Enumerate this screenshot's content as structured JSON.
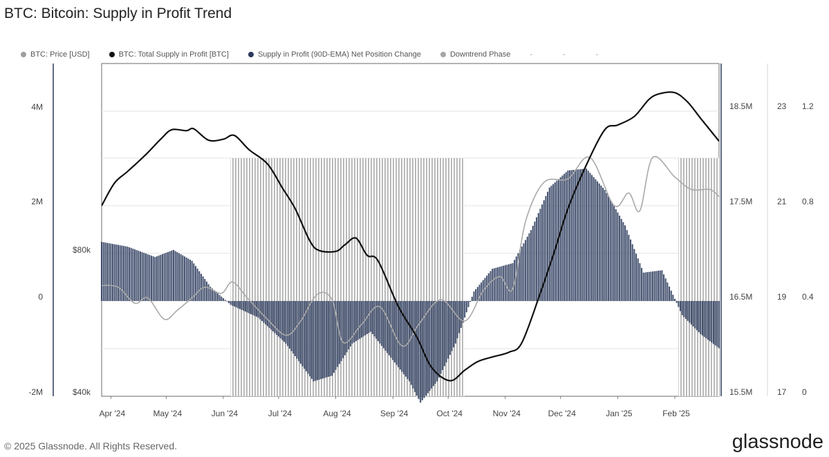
{
  "header": {
    "title": "BTC: Bitcoin: Supply in Profit Trend"
  },
  "legend": [
    {
      "label": "BTC: Price [USD]",
      "color": "#9e9e9e"
    },
    {
      "label": "BTC: Total Supply in Profit [BTC]",
      "color": "#111111"
    },
    {
      "label": "Supply in Profit (90D-EMA) Net Position Change",
      "color": "#2b3a5c"
    },
    {
      "label": "Downtrend Phase",
      "color": "#a6a6a6"
    }
  ],
  "footer": {
    "copyright": "© 2025 Glassnode. All Rights Reserved.",
    "brand": "glassnode"
  },
  "chart_data": {
    "type": "line",
    "x_labels": [
      "Apr '24",
      "May '24",
      "Jun '24",
      "Jul '24",
      "Aug '24",
      "Sep '24",
      "Oct '24",
      "Nov '24",
      "Dec '24",
      "Jan '25",
      "Feb '25"
    ],
    "x_range": [
      "2024-03-27",
      "2025-02-25"
    ],
    "axes": {
      "net_change": {
        "ticks": [
          "4M",
          "2M",
          "0",
          "-2M"
        ],
        "range": [
          -2000000,
          4000000
        ]
      },
      "price": {
        "ticks": [
          "$80k",
          "$40k"
        ],
        "range": [
          40000,
          80000
        ]
      },
      "supply": {
        "ticks": [
          "18.5M",
          "17.5M",
          "16.5M",
          "15.5M"
        ],
        "range": [
          15500000,
          18500000
        ]
      },
      "aux1": {
        "ticks": [
          "23",
          "21",
          "19",
          "17"
        ]
      },
      "aux2": {
        "ticks": [
          "1.2",
          "0.8",
          "0.4",
          "0"
        ]
      }
    },
    "grid": true,
    "downtrend_phases": [
      {
        "start": "2024-06-05",
        "end": "2024-10-10"
      },
      {
        "start": "2025-02-03",
        "end": "2025-02-25"
      }
    ],
    "series": [
      {
        "name": "BTC: Total Supply in Profit [BTC]",
        "axis": "supply",
        "color": "#111111",
        "points": [
          [
            "2024-03-27",
            17460000
          ],
          [
            "2024-04-03",
            17700000
          ],
          [
            "2024-04-10",
            17820000
          ],
          [
            "2024-04-20",
            18000000
          ],
          [
            "2024-04-28",
            18160000
          ],
          [
            "2024-05-04",
            18260000
          ],
          [
            "2024-05-12",
            18250000
          ],
          [
            "2024-05-16",
            18270000
          ],
          [
            "2024-05-24",
            18150000
          ],
          [
            "2024-06-01",
            18160000
          ],
          [
            "2024-06-07",
            18200000
          ],
          [
            "2024-06-15",
            18050000
          ],
          [
            "2024-06-25",
            17900000
          ],
          [
            "2024-07-03",
            17650000
          ],
          [
            "2024-07-10",
            17430000
          ],
          [
            "2024-07-18",
            17090000
          ],
          [
            "2024-07-23",
            16990000
          ],
          [
            "2024-08-01",
            16980000
          ],
          [
            "2024-08-06",
            17050000
          ],
          [
            "2024-08-12",
            17120000
          ],
          [
            "2024-08-18",
            16940000
          ],
          [
            "2024-08-24",
            16880000
          ],
          [
            "2024-09-04",
            16400000
          ],
          [
            "2024-09-14",
            16080000
          ],
          [
            "2024-09-22",
            15760000
          ],
          [
            "2024-10-02",
            15620000
          ],
          [
            "2024-10-10",
            15730000
          ],
          [
            "2024-10-17",
            15820000
          ],
          [
            "2024-10-25",
            15870000
          ],
          [
            "2024-11-03",
            15920000
          ],
          [
            "2024-11-10",
            16020000
          ],
          [
            "2024-11-20",
            16540000
          ],
          [
            "2024-11-28",
            17000000
          ],
          [
            "2024-12-05",
            17430000
          ],
          [
            "2024-12-15",
            17890000
          ],
          [
            "2024-12-25",
            18260000
          ],
          [
            "2025-01-01",
            18310000
          ],
          [
            "2025-01-10",
            18400000
          ],
          [
            "2025-01-18",
            18580000
          ],
          [
            "2025-01-24",
            18640000
          ],
          [
            "2025-02-01",
            18650000
          ],
          [
            "2025-02-08",
            18550000
          ],
          [
            "2025-02-15",
            18380000
          ],
          [
            "2025-02-25",
            18140000
          ]
        ]
      },
      {
        "name": "BTC: Price [USD]",
        "axis": "price",
        "color": "#a9a9a9",
        "points": [
          [
            "2024-03-27",
            70000
          ],
          [
            "2024-04-05",
            69500
          ],
          [
            "2024-04-14",
            65000
          ],
          [
            "2024-04-21",
            66500
          ],
          [
            "2024-04-30",
            60500
          ],
          [
            "2024-05-07",
            63000
          ],
          [
            "2024-05-15",
            66500
          ],
          [
            "2024-05-22",
            69500
          ],
          [
            "2024-05-31",
            67800
          ],
          [
            "2024-06-06",
            71000
          ],
          [
            "2024-06-14",
            66500
          ],
          [
            "2024-06-24",
            61000
          ],
          [
            "2024-07-05",
            56000
          ],
          [
            "2024-07-13",
            60000
          ],
          [
            "2024-07-22",
            67500
          ],
          [
            "2024-07-30",
            66000
          ],
          [
            "2024-08-05",
            54000
          ],
          [
            "2024-08-15",
            59000
          ],
          [
            "2024-08-25",
            64000
          ],
          [
            "2024-09-06",
            53000
          ],
          [
            "2024-09-15",
            59000
          ],
          [
            "2024-09-27",
            66000
          ],
          [
            "2024-10-10",
            60000
          ],
          [
            "2024-10-20",
            68500
          ],
          [
            "2024-10-29",
            72500
          ],
          [
            "2024-11-05",
            69000
          ],
          [
            "2024-11-12",
            88000
          ],
          [
            "2024-11-22",
            99000
          ],
          [
            "2024-12-05",
            100000
          ],
          [
            "2024-12-17",
            106000
          ],
          [
            "2024-12-30",
            92500
          ],
          [
            "2025-01-07",
            96000
          ],
          [
            "2025-01-13",
            91000
          ],
          [
            "2025-01-20",
            106000
          ],
          [
            "2025-02-01",
            100500
          ],
          [
            "2025-02-10",
            97000
          ],
          [
            "2025-02-20",
            97000
          ],
          [
            "2025-02-25",
            95000
          ]
        ]
      },
      {
        "name": "Supply in Profit (90D-EMA) Net Position Change",
        "axis": "net_change",
        "color": "#2b3a5c",
        "points": [
          [
            "2024-03-27",
            1250000
          ],
          [
            "2024-04-10",
            1150000
          ],
          [
            "2024-04-25",
            930000
          ],
          [
            "2024-05-05",
            1080000
          ],
          [
            "2024-05-15",
            850000
          ],
          [
            "2024-05-25",
            300000
          ],
          [
            "2024-06-05",
            -80000
          ],
          [
            "2024-06-20",
            -350000
          ],
          [
            "2024-07-05",
            -900000
          ],
          [
            "2024-07-20",
            -1700000
          ],
          [
            "2024-07-30",
            -1580000
          ],
          [
            "2024-08-10",
            -900000
          ],
          [
            "2024-08-20",
            -650000
          ],
          [
            "2024-09-01",
            -1250000
          ],
          [
            "2024-09-10",
            -1700000
          ],
          [
            "2024-09-16",
            -2150000
          ],
          [
            "2024-09-25",
            -1700000
          ],
          [
            "2024-10-05",
            -900000
          ],
          [
            "2024-10-15",
            200000
          ],
          [
            "2024-10-25",
            680000
          ],
          [
            "2024-11-05",
            800000
          ],
          [
            "2024-11-15",
            1500000
          ],
          [
            "2024-11-25",
            2400000
          ],
          [
            "2024-12-05",
            2760000
          ],
          [
            "2024-12-15",
            2800000
          ],
          [
            "2024-12-25",
            2350000
          ],
          [
            "2025-01-05",
            1600000
          ],
          [
            "2025-01-15",
            600000
          ],
          [
            "2025-01-25",
            650000
          ],
          [
            "2025-02-05",
            -300000
          ],
          [
            "2025-02-15",
            -700000
          ],
          [
            "2025-02-25",
            -1000000
          ]
        ]
      }
    ]
  }
}
